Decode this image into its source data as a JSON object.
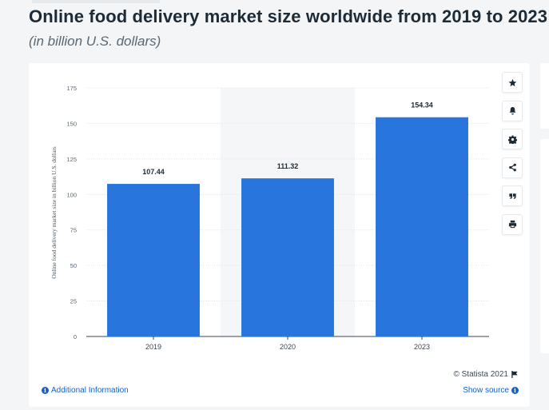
{
  "header": {
    "title": "Online food delivery market size worldwide from 2019 to 2023",
    "subtitle": "(in billion U.S. dollars)"
  },
  "chart_data": {
    "type": "bar",
    "categories": [
      "2019",
      "2020",
      "2023"
    ],
    "values": [
      107.44,
      111.32,
      154.34
    ],
    "value_labels": [
      "107.44",
      "111.32",
      "154.34"
    ],
    "ylabel": "Online food delivery market size in billion U.S. dollars",
    "xlabel": "",
    "ylim": [
      0,
      175
    ],
    "yticks": [
      "0",
      "25",
      "50",
      "75",
      "100",
      "125",
      "150",
      "175"
    ],
    "grid": true,
    "highlighted_category": "2020",
    "bar_color": "#2876dd"
  },
  "toolbar": {
    "icons": [
      "star-icon",
      "bell-icon",
      "gear-icon",
      "share-icon",
      "quote-icon",
      "print-icon"
    ]
  },
  "footer": {
    "copyright": "© Statista 2021",
    "additional_info": "Additional Information",
    "show_source": "Show source"
  },
  "colors": {
    "accent": "#1462c4",
    "bar": "#2876dd",
    "title": "#1c2b36"
  }
}
